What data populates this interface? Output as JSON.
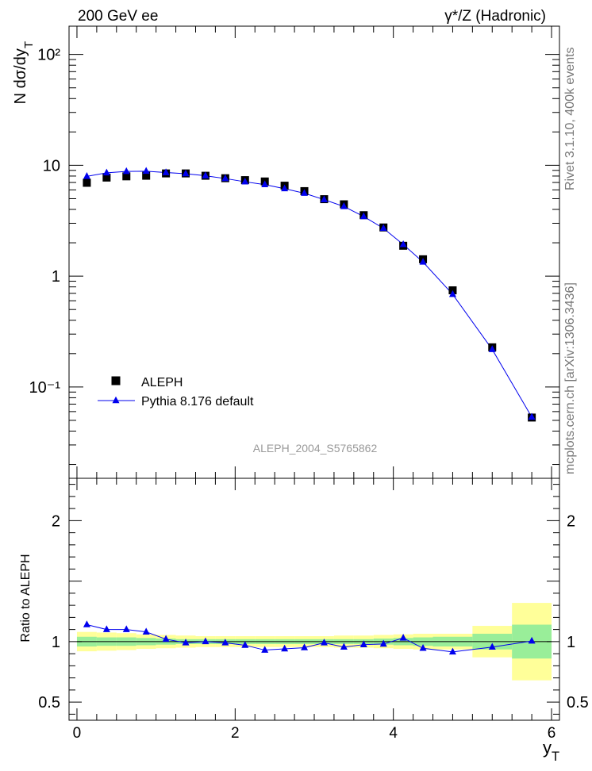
{
  "header": {
    "left": "200 GeV ee",
    "right": "γ*/Z (Hadronic)"
  },
  "side_labels": {
    "rivet": "Rivet 3.1.10,  400k events",
    "mcplots": "mcplots.cern.ch [arXiv:1306.3436]"
  },
  "watermark": "ALEPH_2004_S5765862",
  "chart_data": [
    {
      "type": "scatter",
      "panel": "main",
      "ylabel": "N dσ/dy_T",
      "yscale": "log",
      "ylim": [
        0.015,
        180
      ],
      "xlim": [
        -0.1,
        6.1
      ],
      "ytick_labels": [
        "10⁻¹",
        "1",
        "10",
        "10²"
      ],
      "legend_position": "lower-left",
      "series": [
        {
          "name": "ALEPH",
          "marker": "square",
          "color": "#000000",
          "x": [
            0.125,
            0.375,
            0.625,
            0.875,
            1.125,
            1.375,
            1.625,
            1.875,
            2.125,
            2.375,
            2.625,
            2.875,
            3.125,
            3.375,
            3.625,
            3.875,
            4.125,
            4.375,
            4.75,
            5.25,
            5.75
          ],
          "y": [
            6.95,
            7.75,
            7.95,
            8.05,
            8.45,
            8.45,
            8.05,
            7.65,
            7.35,
            7.15,
            6.55,
            5.85,
            4.95,
            4.45,
            3.55,
            2.75,
            1.88,
            1.42,
            0.745,
            0.228,
            0.053
          ]
        },
        {
          "name": "Pythia 8.176 default",
          "marker": "triangle",
          "color": "#0000ee",
          "x": [
            0.125,
            0.375,
            0.625,
            0.875,
            1.125,
            1.375,
            1.625,
            1.875,
            2.125,
            2.375,
            2.625,
            2.875,
            3.125,
            3.375,
            3.625,
            3.875,
            4.125,
            4.375,
            4.75,
            5.25,
            5.75
          ],
          "y": [
            7.95,
            8.55,
            8.8,
            8.85,
            8.6,
            8.4,
            8.05,
            7.6,
            7.1,
            6.7,
            6.15,
            5.6,
            4.9,
            4.25,
            3.45,
            2.7,
            1.93,
            1.34,
            0.685,
            0.218,
            0.0535
          ]
        }
      ]
    },
    {
      "type": "line",
      "panel": "ratio",
      "ylabel": "Ratio to ALEPH",
      "xlabel": "y_T",
      "ylim": [
        0.35,
        2.35
      ],
      "xlim": [
        -0.1,
        6.1
      ],
      "xtick_labels": [
        "0",
        "2",
        "4",
        "6"
      ],
      "ytick_labels": [
        "0.5",
        "1",
        "2"
      ],
      "bands": {
        "edges": [
          0,
          0.25,
          0.5,
          0.75,
          1.0,
          1.25,
          1.5,
          1.75,
          2.0,
          2.25,
          2.5,
          2.75,
          3.0,
          3.25,
          3.5,
          3.75,
          4.0,
          4.25,
          4.5,
          5.0,
          5.5,
          6.0
        ],
        "stat_lo": [
          0.96,
          0.965,
          0.965,
          0.97,
          0.975,
          0.98,
          0.98,
          0.98,
          0.98,
          0.98,
          0.98,
          0.98,
          0.98,
          0.98,
          0.98,
          0.975,
          0.97,
          0.965,
          0.96,
          0.935,
          0.86
        ],
        "stat_hi": [
          1.04,
          1.035,
          1.035,
          1.03,
          1.025,
          1.02,
          1.02,
          1.02,
          1.02,
          1.02,
          1.02,
          1.02,
          1.02,
          1.02,
          1.02,
          1.025,
          1.03,
          1.035,
          1.04,
          1.065,
          1.14
        ],
        "total_lo": [
          0.92,
          0.925,
          0.93,
          0.94,
          0.945,
          0.95,
          0.955,
          0.955,
          0.955,
          0.955,
          0.955,
          0.955,
          0.955,
          0.95,
          0.95,
          0.945,
          0.94,
          0.935,
          0.935,
          0.87,
          0.68
        ],
        "total_hi": [
          1.08,
          1.075,
          1.07,
          1.06,
          1.055,
          1.05,
          1.045,
          1.045,
          1.045,
          1.045,
          1.045,
          1.045,
          1.045,
          1.05,
          1.05,
          1.055,
          1.06,
          1.065,
          1.065,
          1.13,
          1.32
        ],
        "stat_color": "#99ee99",
        "total_color": "#ffff99"
      },
      "series": [
        {
          "name": "Pythia 8.176 default",
          "marker": "triangle",
          "color": "#0000ee",
          "x": [
            0.125,
            0.375,
            0.625,
            0.875,
            1.125,
            1.375,
            1.625,
            1.875,
            2.125,
            2.375,
            2.625,
            2.875,
            3.125,
            3.375,
            3.625,
            3.875,
            4.125,
            4.375,
            4.75,
            5.25,
            5.75
          ],
          "y": [
            1.14,
            1.1,
            1.1,
            1.08,
            1.02,
            0.99,
            1.0,
            0.99,
            0.97,
            0.93,
            0.94,
            0.95,
            0.99,
            0.955,
            0.975,
            0.98,
            1.03,
            0.945,
            0.915,
            0.955,
            1.005
          ]
        }
      ]
    }
  ]
}
